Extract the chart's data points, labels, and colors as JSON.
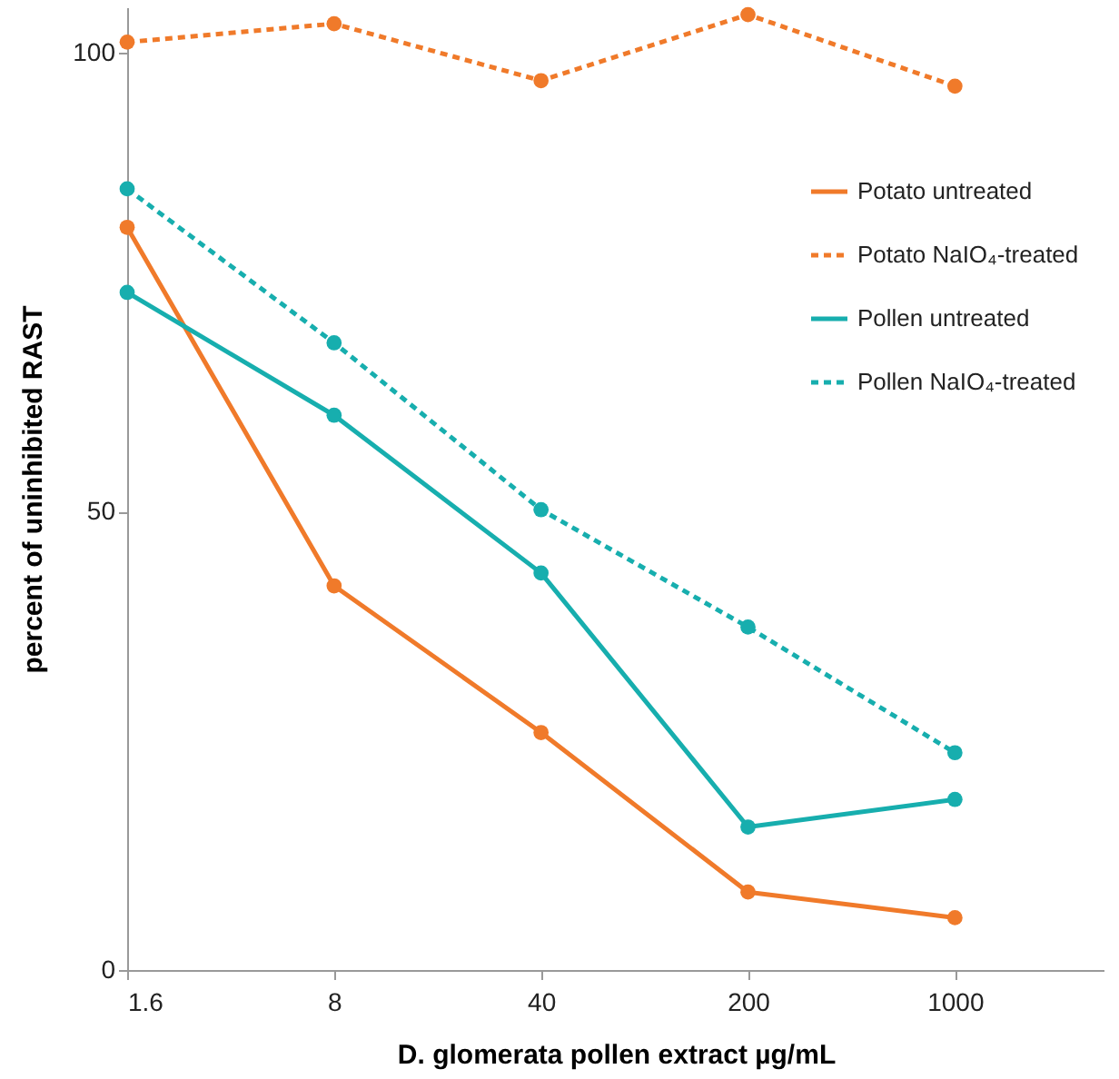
{
  "chart_data": {
    "type": "line",
    "xlabel": "D. glomerata pollen extract µg/mL",
    "ylabel": "percent of uninhibited RAST",
    "x": [
      1.6,
      8,
      40,
      200,
      1000
    ],
    "log": "x",
    "xlim": [
      1.6,
      3200
    ],
    "xticks": [
      1.6,
      8,
      40,
      200,
      1000
    ],
    "ylim": [
      0,
      105
    ],
    "yticks": [
      0,
      50,
      100
    ],
    "grid": false,
    "legend": "top right",
    "marker": "circle",
    "series": [
      {
        "name": "Potato untreated",
        "color": "#f07a2a",
        "line_style": "solid",
        "values": [
          81.0,
          41.9,
          25.9,
          8.5,
          5.7
        ]
      },
      {
        "name": "Potato NaIO₄-treated",
        "color": "#f07a2a",
        "line_style": "dashed",
        "values": [
          101.2,
          103.2,
          97.0,
          104.2,
          96.4
        ]
      },
      {
        "name": "Pollen untreated",
        "color": "#17aeae",
        "line_style": "solid",
        "values": [
          73.9,
          60.5,
          43.3,
          15.6,
          18.6
        ]
      },
      {
        "name": "Pollen NaIO₄-treated",
        "color": "#17aeae",
        "line_style": "dashed",
        "values": [
          85.2,
          68.4,
          50.2,
          37.4,
          23.7
        ]
      }
    ]
  }
}
